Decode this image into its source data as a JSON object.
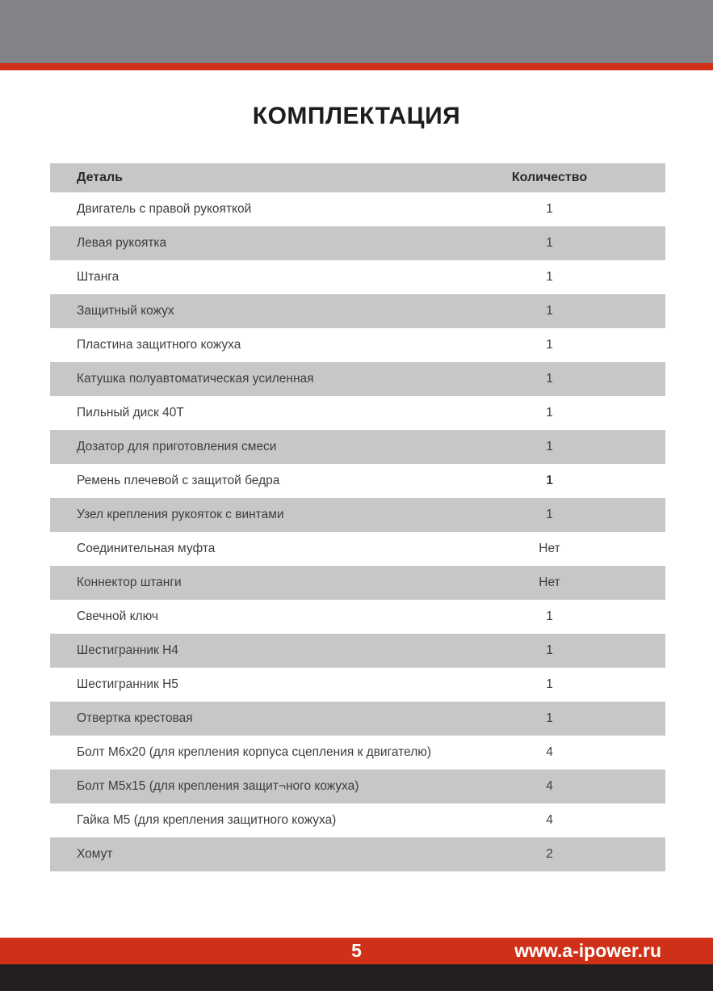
{
  "title": "КОМПЛЕКТАЦИЯ",
  "table": {
    "columns": [
      "Деталь",
      "Количество"
    ],
    "rows": [
      {
        "label": "Двигатель с правой рукояткой",
        "qty": "1"
      },
      {
        "label": "Левая рукоятка",
        "qty": "1"
      },
      {
        "label": "Штанга",
        "qty": "1"
      },
      {
        "label": "Защитный кожух",
        "qty": "1"
      },
      {
        "label": "Пластина защитного кожуха",
        "qty": "1"
      },
      {
        "label": "Катушка полуавтоматическая усиленная",
        "qty": "1"
      },
      {
        "label": "Пильный диск 40Т",
        "qty": "1"
      },
      {
        "label": "Дозатор для приготовления смеси",
        "qty": "1"
      },
      {
        "label": "Ремень плечевой с защитой бедра",
        "qty": "1",
        "qty_bold": true
      },
      {
        "label": "Узел крепления рукояток с винтами",
        "qty": "1"
      },
      {
        "label": "Соединительная муфта",
        "qty": "Нет"
      },
      {
        "label": "Коннектор штанги",
        "qty": "Нет"
      },
      {
        "label": "Свечной ключ",
        "qty": "1"
      },
      {
        "label": "Шестигранник Н4",
        "qty": "1"
      },
      {
        "label": "Шестигранник Н5",
        "qty": "1"
      },
      {
        "label": "Отвертка крестовая",
        "qty": "1"
      },
      {
        "label": "Болт М6х20 (для крепления корпуса сцепления к двигателю)",
        "qty": "4"
      },
      {
        "label": "Болт М5х15 (для крепления защит¬ного кожуха)",
        "qty": "4"
      },
      {
        "label": "Гайка М5 (для крепления защитного кожуха)",
        "qty": "4"
      },
      {
        "label": "Хомут",
        "qty": "2"
      }
    ]
  },
  "footer": {
    "page_number": "5",
    "website": "www.a-ipower.ru"
  },
  "colors": {
    "accent_red": "#cf3018",
    "top_bar_gray": "#828387",
    "row_gray": "#c6c7c9",
    "footer_dark": "#231f20"
  }
}
